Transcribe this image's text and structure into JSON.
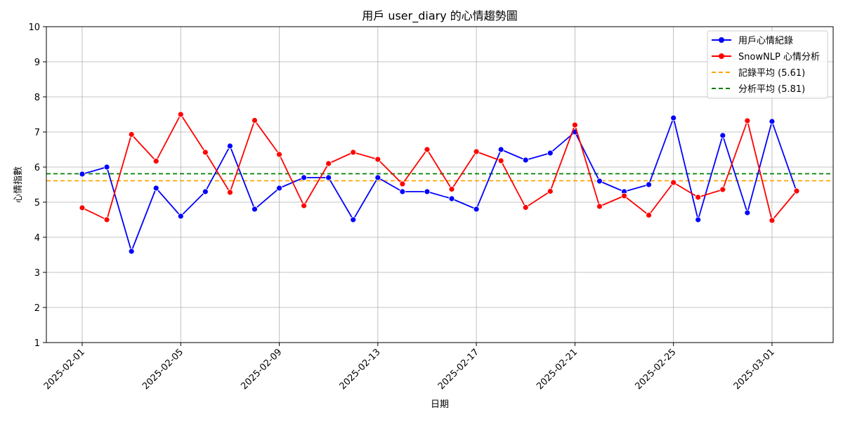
{
  "chart_data": {
    "type": "line",
    "title": "用戶 user_diary 的心情趨勢圖",
    "xlabel": "日期",
    "ylabel": "心情指數",
    "ylim": [
      1,
      10
    ],
    "x": [
      "2025-02-01",
      "2025-02-02",
      "2025-02-03",
      "2025-02-04",
      "2025-02-05",
      "2025-02-06",
      "2025-02-07",
      "2025-02-08",
      "2025-02-09",
      "2025-02-10",
      "2025-02-11",
      "2025-02-12",
      "2025-02-13",
      "2025-02-14",
      "2025-02-15",
      "2025-02-16",
      "2025-02-17",
      "2025-02-18",
      "2025-02-19",
      "2025-02-20",
      "2025-02-21",
      "2025-02-22",
      "2025-02-23",
      "2025-02-24",
      "2025-02-25",
      "2025-02-26",
      "2025-02-27",
      "2025-02-28",
      "2025-03-01",
      "2025-03-02"
    ],
    "x_tick_labels": [
      "2025-02-01",
      "2025-02-05",
      "2025-02-09",
      "2025-02-13",
      "2025-02-17",
      "2025-02-21",
      "2025-02-25",
      "2025-03-01"
    ],
    "y_ticks": [
      1,
      2,
      3,
      4,
      5,
      6,
      7,
      8,
      9,
      10
    ],
    "grid": true,
    "legend_position": "top-right",
    "series": [
      {
        "name": "用戶心情紀錄",
        "color": "#0000ff",
        "marker": "circle",
        "values": [
          5.8,
          6.0,
          3.6,
          5.4,
          4.6,
          5.3,
          6.6,
          4.8,
          5.4,
          5.7,
          5.7,
          4.5,
          5.7,
          5.3,
          5.3,
          5.1,
          4.8,
          6.5,
          6.2,
          6.4,
          7.0,
          5.6,
          5.3,
          5.5,
          7.4,
          4.5,
          6.9,
          4.7,
          7.3,
          5.3
        ]
      },
      {
        "name": "SnowNLP 心情分析",
        "color": "#ff0000",
        "marker": "circle",
        "values": [
          4.84,
          4.5,
          6.93,
          6.17,
          7.5,
          6.42,
          5.28,
          7.33,
          6.36,
          4.9,
          6.1,
          6.42,
          6.22,
          5.52,
          6.5,
          5.37,
          6.44,
          6.18,
          4.85,
          5.31,
          7.2,
          4.88,
          5.18,
          4.63,
          5.56,
          5.14,
          5.36,
          7.32,
          4.48,
          5.32
        ]
      }
    ],
    "reference_lines": [
      {
        "name": "記錄平均 (5.61)",
        "value": 5.61,
        "color": "#ffa500",
        "style": "dashed"
      },
      {
        "name": "分析平均 (5.81)",
        "value": 5.81,
        "color": "#008000",
        "style": "dashed"
      }
    ]
  }
}
